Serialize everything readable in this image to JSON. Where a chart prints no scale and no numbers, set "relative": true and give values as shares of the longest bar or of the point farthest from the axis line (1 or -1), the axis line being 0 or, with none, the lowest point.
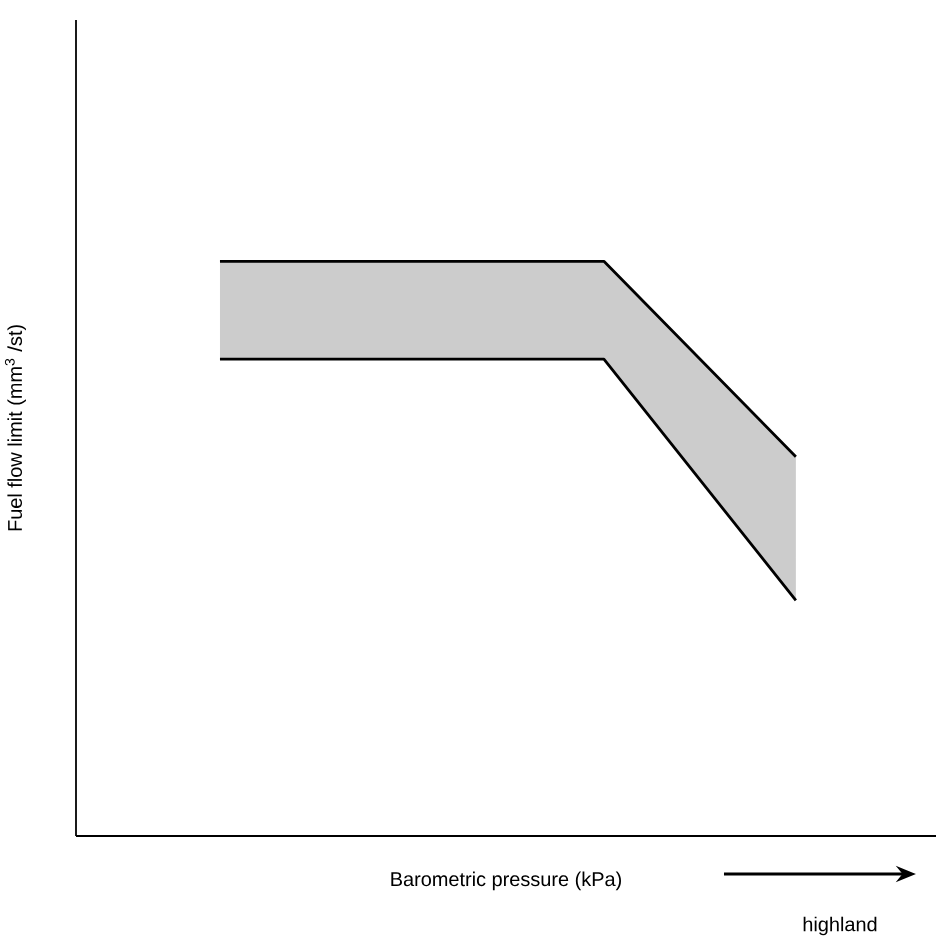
{
  "chart_data": {
    "type": "line",
    "relative": true,
    "xlabel": "Barometric pressure (kPa)",
    "ylabel": "Fuel flow limit (mm$^{3}$ /st)",
    "categories": [
      null,
      null,
      null,
      null
    ],
    "series": [
      {
        "color": "#000000",
        "values": [
          1,
          1,
          1,
          0.66
        ],
        "lower": [
          0.83,
          0.83,
          0.83,
          0.41
        ],
        "upper": [
          1,
          1,
          1,
          0.66
        ]
      },
      {
        "color": "#000000",
        "values": [
          0.83,
          0.83,
          0.83,
          0.41
        ]
      }
    ],
    "annotations": [
      "highland"
    ],
    "marker": "none",
    "line_style": "solid"
  }
}
